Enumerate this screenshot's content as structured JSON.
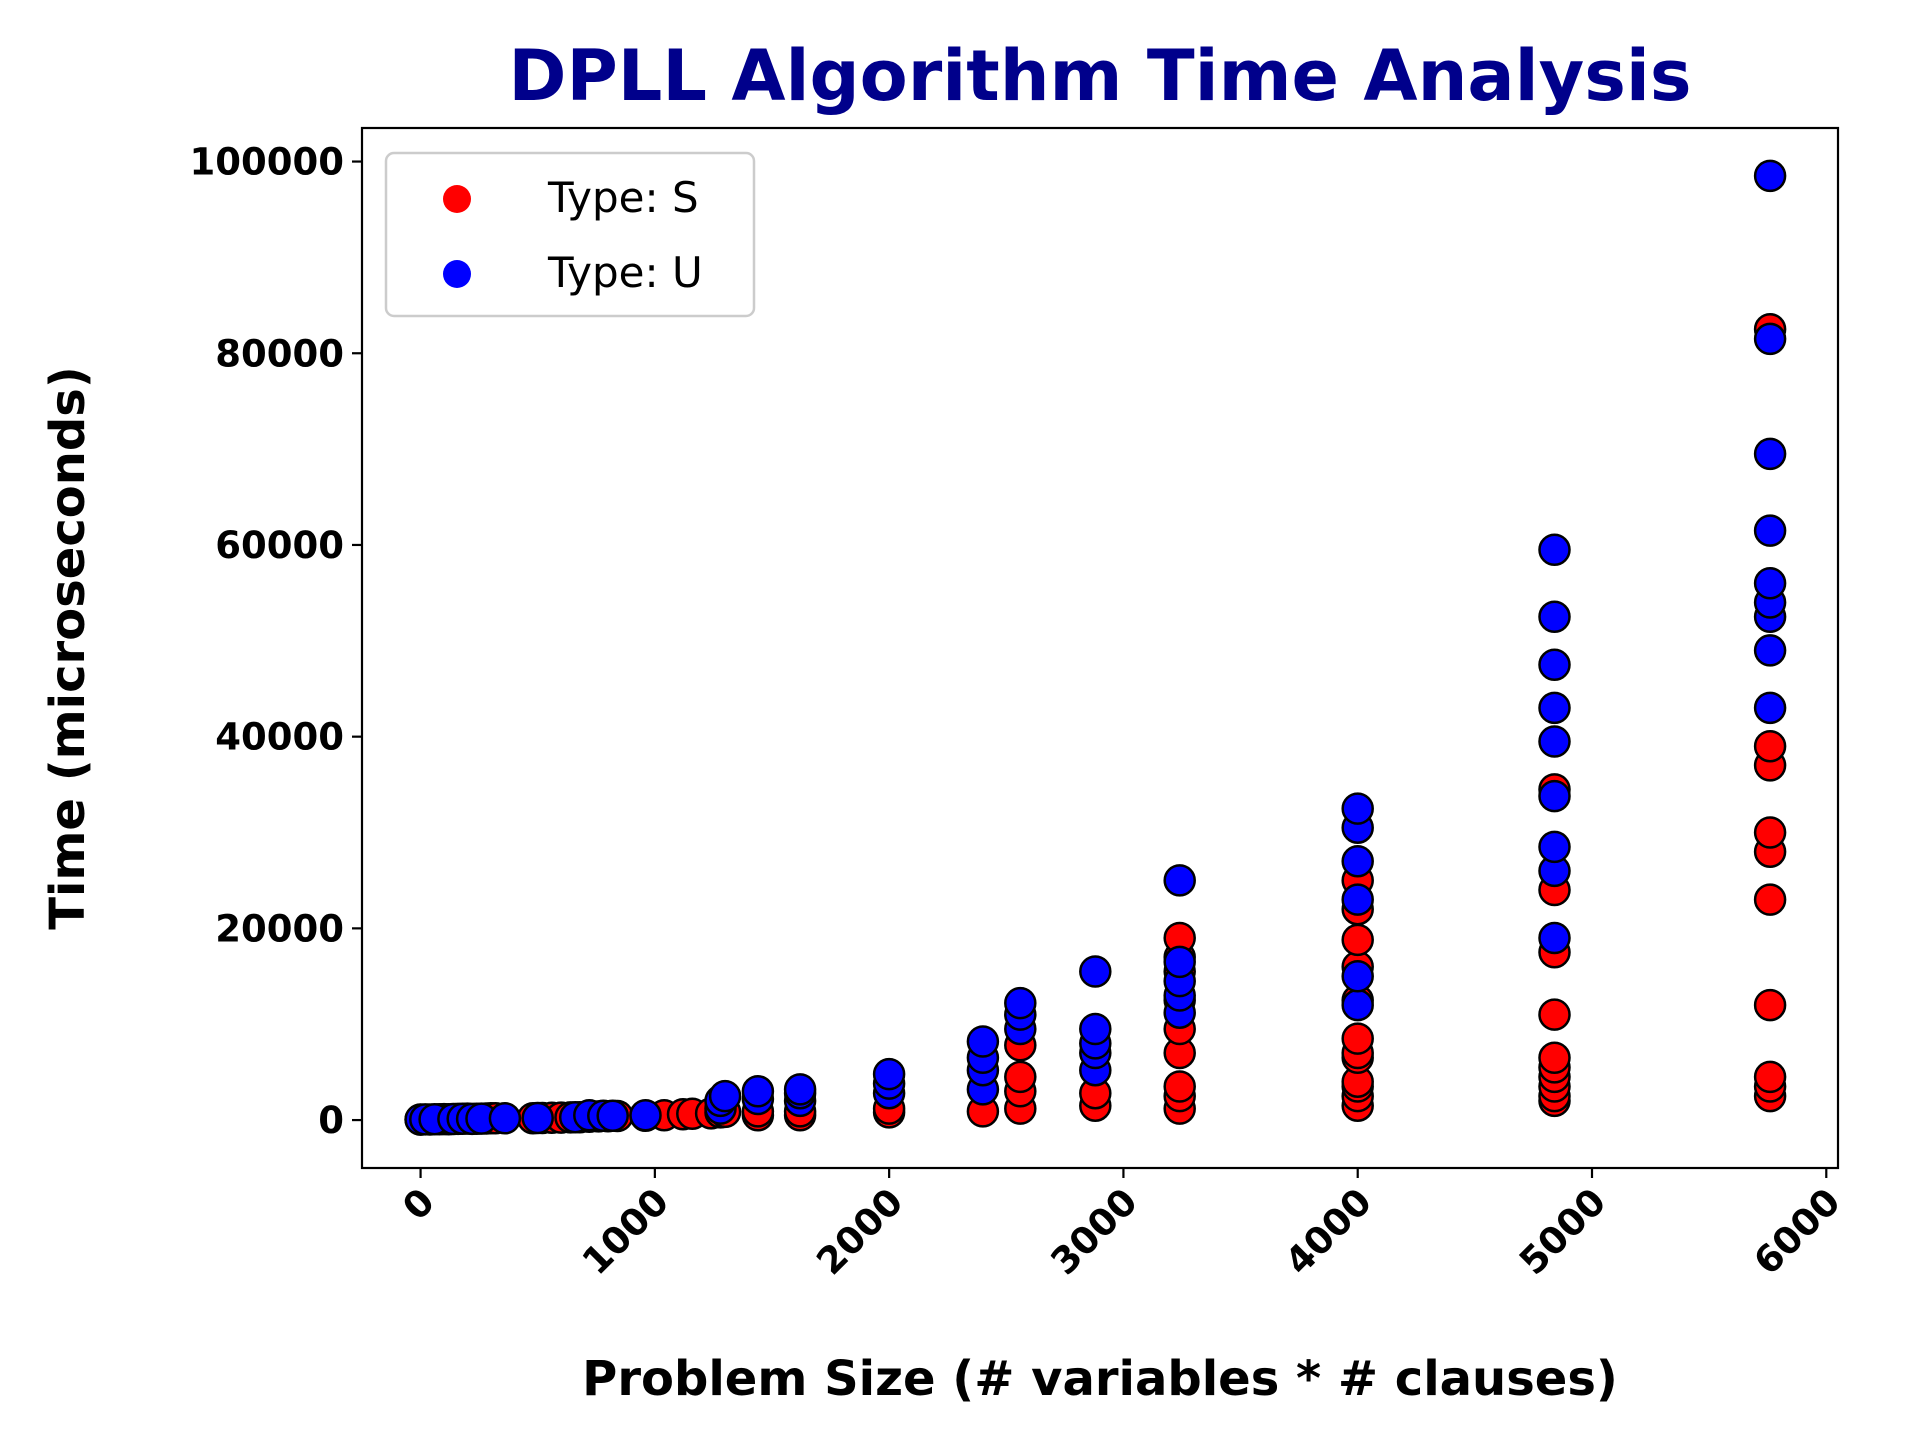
{
  "chart_data": {
    "type": "scatter",
    "title": "DPLL Algorithm Time Analysis",
    "title_color": "#00008B",
    "xlabel": "Problem Size (# variables * # clauses)",
    "ylabel": "Time (microseconds)",
    "xlim": [
      -250,
      6050
    ],
    "ylim": [
      -5000,
      103500
    ],
    "xticks": [
      0,
      1000,
      2000,
      3000,
      4000,
      5000,
      6000
    ],
    "yticks": [
      0,
      20000,
      40000,
      60000,
      80000,
      100000
    ],
    "grid": false,
    "legend_position": "top-left",
    "series": [
      {
        "name": "Type: S",
        "color": "#FF0000",
        "points": [
          [
            0,
            50
          ],
          [
            40,
            60
          ],
          [
            80,
            80
          ],
          [
            100,
            100
          ],
          [
            120,
            90
          ],
          [
            160,
            120
          ],
          [
            200,
            150
          ],
          [
            240,
            140
          ],
          [
            280,
            160
          ],
          [
            300,
            200
          ],
          [
            320,
            180
          ],
          [
            480,
            200
          ],
          [
            520,
            220
          ],
          [
            560,
            250
          ],
          [
            600,
            260
          ],
          [
            640,
            280
          ],
          [
            680,
            300
          ],
          [
            720,
            350
          ],
          [
            760,
            380
          ],
          [
            800,
            400
          ],
          [
            840,
            420
          ],
          [
            960,
            450
          ],
          [
            1040,
            500
          ],
          [
            1120,
            600
          ],
          [
            1160,
            650
          ],
          [
            1240,
            700
          ],
          [
            1280,
            800
          ],
          [
            1300,
            850
          ],
          [
            1440,
            500
          ],
          [
            1440,
            900
          ],
          [
            1620,
            500
          ],
          [
            1620,
            900
          ],
          [
            2000,
            800
          ],
          [
            2000,
            1200
          ],
          [
            2400,
            900
          ],
          [
            2560,
            1200
          ],
          [
            2560,
            3000
          ],
          [
            2560,
            4500
          ],
          [
            2560,
            7800
          ],
          [
            2880,
            1500
          ],
          [
            2880,
            2800
          ],
          [
            3240,
            1200
          ],
          [
            3240,
            2500
          ],
          [
            3240,
            3500
          ],
          [
            3240,
            7000
          ],
          [
            3240,
            9500
          ],
          [
            3240,
            12500
          ],
          [
            3240,
            15500
          ],
          [
            3240,
            17000
          ],
          [
            3240,
            19000
          ],
          [
            4000,
            1500
          ],
          [
            4000,
            2500
          ],
          [
            4000,
            3500
          ],
          [
            4000,
            4000
          ],
          [
            4000,
            6500
          ],
          [
            4000,
            7000
          ],
          [
            4000,
            8500
          ],
          [
            4000,
            12500
          ],
          [
            4000,
            16000
          ],
          [
            4000,
            18800
          ],
          [
            4000,
            22000
          ],
          [
            4000,
            25000
          ],
          [
            4840,
            2000
          ],
          [
            4840,
            2500
          ],
          [
            4840,
            3500
          ],
          [
            4840,
            4500
          ],
          [
            4840,
            5500
          ],
          [
            4840,
            6500
          ],
          [
            4840,
            11000
          ],
          [
            4840,
            17500
          ],
          [
            4840,
            24000
          ],
          [
            4840,
            34500
          ],
          [
            5760,
            2500
          ],
          [
            5760,
            3500
          ],
          [
            5760,
            4500
          ],
          [
            5760,
            12000
          ],
          [
            5760,
            23000
          ],
          [
            5760,
            28000
          ],
          [
            5760,
            30000
          ],
          [
            5760,
            37000
          ],
          [
            5760,
            39000
          ],
          [
            5760,
            82500
          ]
        ]
      },
      {
        "name": "Type: U",
        "color": "#0000FF",
        "points": [
          [
            0,
            60
          ],
          [
            20,
            70
          ],
          [
            60,
            90
          ],
          [
            140,
            110
          ],
          [
            180,
            140
          ],
          [
            220,
            120
          ],
          [
            260,
            150
          ],
          [
            360,
            180
          ],
          [
            500,
            220
          ],
          [
            660,
            300
          ],
          [
            720,
            500
          ],
          [
            780,
            450
          ],
          [
            820,
            450
          ],
          [
            960,
            500
          ],
          [
            1280,
            1200
          ],
          [
            1280,
            2000
          ],
          [
            1300,
            2500
          ],
          [
            1440,
            2200
          ],
          [
            1440,
            3000
          ],
          [
            1620,
            2000
          ],
          [
            1620,
            2800
          ],
          [
            1620,
            3200
          ],
          [
            2000,
            2800
          ],
          [
            2000,
            3800
          ],
          [
            2000,
            4800
          ],
          [
            2400,
            3200
          ],
          [
            2400,
            5200
          ],
          [
            2400,
            6500
          ],
          [
            2400,
            8200
          ],
          [
            2560,
            9500
          ],
          [
            2560,
            11000
          ],
          [
            2560,
            12200
          ],
          [
            2880,
            5200
          ],
          [
            2880,
            7000
          ],
          [
            2880,
            8000
          ],
          [
            2880,
            9500
          ],
          [
            2880,
            15500
          ],
          [
            3240,
            11200
          ],
          [
            3240,
            13000
          ],
          [
            3240,
            14500
          ],
          [
            3240,
            16500
          ],
          [
            3240,
            25000
          ],
          [
            4000,
            12000
          ],
          [
            4000,
            15000
          ],
          [
            4000,
            23000
          ],
          [
            4000,
            27000
          ],
          [
            4000,
            30500
          ],
          [
            4000,
            32500
          ],
          [
            4840,
            19000
          ],
          [
            4840,
            26000
          ],
          [
            4840,
            28500
          ],
          [
            4840,
            33800
          ],
          [
            4840,
            39500
          ],
          [
            4840,
            43000
          ],
          [
            4840,
            47500
          ],
          [
            4840,
            52500
          ],
          [
            4840,
            59500
          ],
          [
            5760,
            43000
          ],
          [
            5760,
            49000
          ],
          [
            5760,
            52500
          ],
          [
            5760,
            54000
          ],
          [
            5760,
            56000
          ],
          [
            5760,
            61500
          ],
          [
            5760,
            69500
          ],
          [
            5760,
            81500
          ],
          [
            5760,
            98500
          ]
        ]
      }
    ]
  }
}
